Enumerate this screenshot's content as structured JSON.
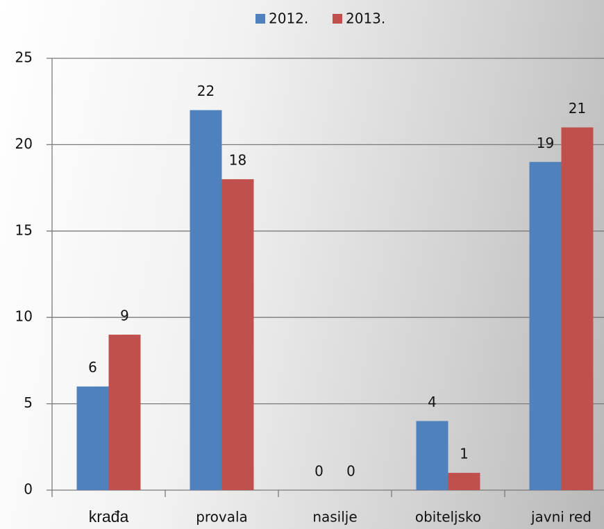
{
  "chart_data": {
    "type": "bar",
    "categories": [
      "krađa",
      "provala",
      "nasilje",
      "obiteljsko",
      "javni red"
    ],
    "series": [
      {
        "name": "2012.",
        "color": "#4f81bd",
        "values": [
          6,
          22,
          0,
          4,
          19
        ]
      },
      {
        "name": "2013.",
        "color": "#c0504d",
        "values": [
          9,
          18,
          0,
          1,
          21
        ]
      }
    ],
    "ylim": [
      0,
      25
    ],
    "yticks": [
      0,
      5,
      10,
      15,
      20,
      25
    ],
    "grid": true,
    "legend": "top"
  }
}
